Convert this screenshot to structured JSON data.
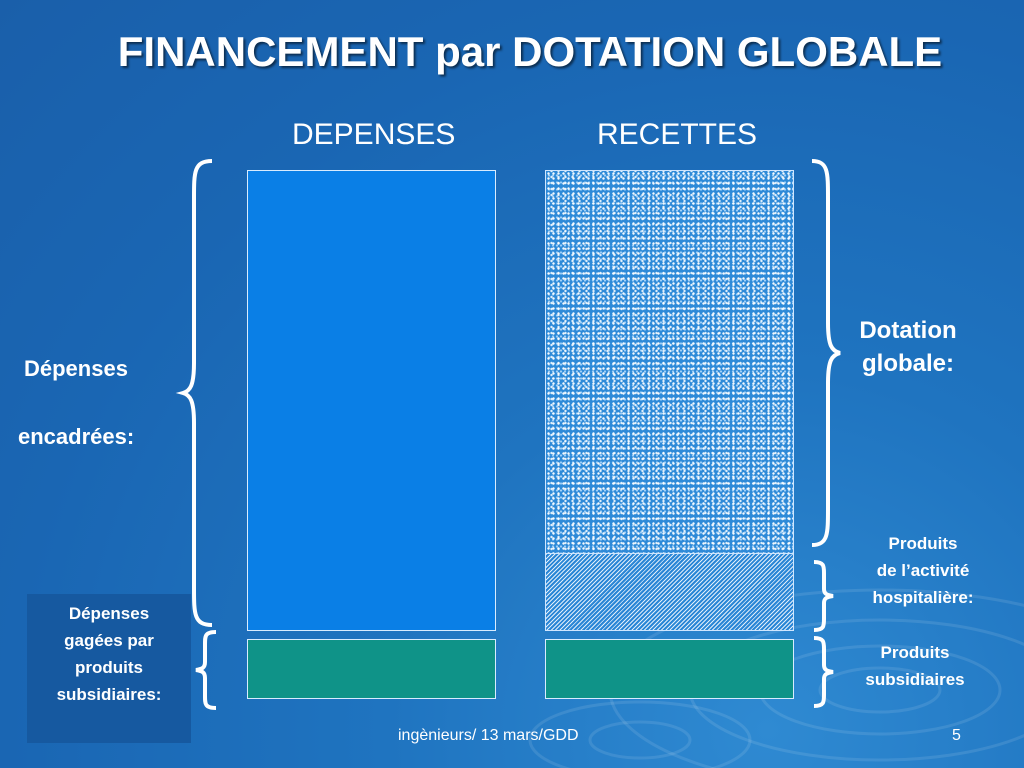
{
  "slide": {
    "title": "FINANCEMENT par DOTATION GLOBALE",
    "columns": {
      "depenses": "DEPENSES",
      "recettes": "RECETTES"
    },
    "left_labels": {
      "depenses_encadrees_line1": "Dépenses",
      "depenses_encadrees_line2": "encadrées:",
      "gagees_lines": [
        "Dépenses",
        "gagées par",
        "produits",
        "subsidiaires:"
      ]
    },
    "right_labels": {
      "dotation_lines": [
        "Dotation",
        "globale:"
      ],
      "produits_activite_lines": [
        "Produits",
        "de l’activité",
        "hospitalière:"
      ],
      "produits_subsidiaires_lines": [
        "Produits",
        "subsidiaires"
      ]
    },
    "footer": {
      "text": "ingènieurs/ 13 mars/GDD",
      "page_number": "5"
    }
  },
  "colors": {
    "background": "#1a66b3",
    "depenses_fill": "#0a7fe6",
    "subsidiaires_fill": "#0f9388",
    "gagees_box": "#1659a0",
    "text": "#ffffff"
  }
}
